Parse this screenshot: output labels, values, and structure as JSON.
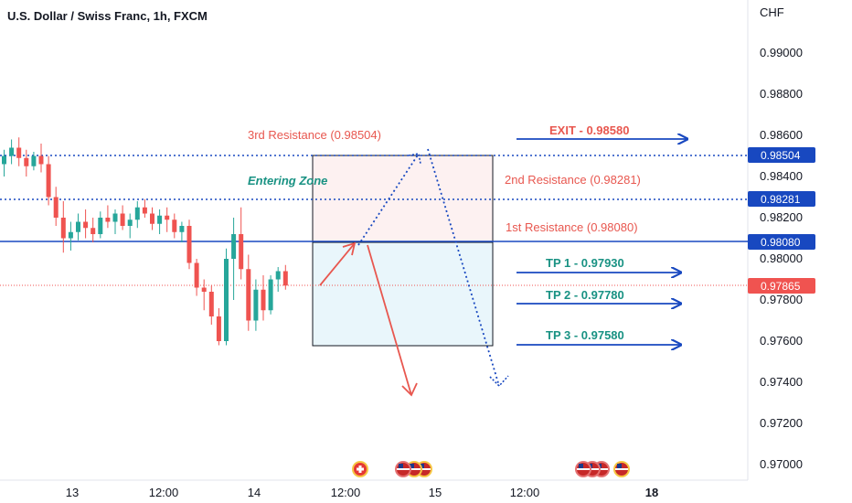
{
  "header": {
    "title": "U.S. Dollar / Swiss Franc, 1h, FXCM"
  },
  "axis": {
    "currency": "CHF",
    "y_ticks": [
      "0.99000",
      "0.98800",
      "0.98600",
      "0.98400",
      "0.98200",
      "0.98000",
      "0.97800",
      "0.97600",
      "0.97400",
      "0.97200",
      "0.97000"
    ],
    "x_ticks": [
      {
        "label": "13",
        "bold": false
      },
      {
        "label": "12:00",
        "bold": false
      },
      {
        "label": "14",
        "bold": false
      },
      {
        "label": "12:00",
        "bold": false
      },
      {
        "label": "15",
        "bold": false
      },
      {
        "label": "12:00",
        "bold": false
      },
      {
        "label": "18",
        "bold": true
      }
    ]
  },
  "price_tags": {
    "r3": "0.98504",
    "r2": "0.98281",
    "r1": "0.98080",
    "last": "0.97865"
  },
  "annotations": {
    "third_resistance": "3rd Resistance (0.98504)",
    "second_resistance": "2nd Resistance (0.98281)",
    "first_resistance": "1st Resistance (0.98080)",
    "entering_zone": "Entering Zone",
    "exit": "EXIT - 0.98580",
    "tp1": "TP 1 - 0.97930",
    "tp2": "TP 2 - 0.97780",
    "tp3": "TP 3 - 0.97580"
  },
  "colors": {
    "up": "#26a69a",
    "down": "#ef5350",
    "blue": "#1848c0",
    "blue_tag": "#1848c0",
    "red_tag": "#f05350",
    "text_red": "#e8574f",
    "text_teal": "#199283",
    "axis_text": "#131722"
  },
  "chart_data": {
    "type": "candlestick",
    "ylim": [
      0.969,
      0.992
    ],
    "candles": [
      [
        0.9846,
        0.9853,
        0.984,
        0.985
      ],
      [
        0.985,
        0.9858,
        0.9846,
        0.9854
      ],
      [
        0.9854,
        0.9859,
        0.9845,
        0.9849
      ],
      [
        0.9849,
        0.9853,
        0.984,
        0.9845
      ],
      [
        0.9845,
        0.9852,
        0.9843,
        0.985
      ],
      [
        0.985,
        0.9856,
        0.9842,
        0.9846
      ],
      [
        0.9846,
        0.985,
        0.9826,
        0.983
      ],
      [
        0.983,
        0.9835,
        0.9816,
        0.982
      ],
      [
        0.982,
        0.9828,
        0.9803,
        0.981
      ],
      [
        0.981,
        0.9818,
        0.9804,
        0.9813
      ],
      [
        0.9813,
        0.9822,
        0.9809,
        0.9818
      ],
      [
        0.9818,
        0.9824,
        0.981,
        0.9815
      ],
      [
        0.9815,
        0.982,
        0.9808,
        0.9812
      ],
      [
        0.9812,
        0.9823,
        0.981,
        0.982
      ],
      [
        0.982,
        0.9826,
        0.9815,
        0.9818
      ],
      [
        0.9818,
        0.9824,
        0.9812,
        0.9822
      ],
      [
        0.9822,
        0.9826,
        0.9814,
        0.9816
      ],
      [
        0.9816,
        0.9822,
        0.981,
        0.9819
      ],
      [
        0.9819,
        0.9828,
        0.9815,
        0.9825
      ],
      [
        0.9825,
        0.9829,
        0.982,
        0.9822
      ],
      [
        0.9822,
        0.9825,
        0.9814,
        0.9817
      ],
      [
        0.9817,
        0.9824,
        0.9812,
        0.9821
      ],
      [
        0.9821,
        0.9825,
        0.9813,
        0.9819
      ],
      [
        0.9819,
        0.9822,
        0.981,
        0.9813
      ],
      [
        0.9813,
        0.9818,
        0.9808,
        0.9816
      ],
      [
        0.9816,
        0.9819,
        0.9795,
        0.9798
      ],
      [
        0.9798,
        0.98,
        0.9782,
        0.9786
      ],
      [
        0.9786,
        0.979,
        0.9775,
        0.9784
      ],
      [
        0.9784,
        0.9787,
        0.9768,
        0.9772
      ],
      [
        0.9772,
        0.9776,
        0.9758,
        0.976
      ],
      [
        0.976,
        0.9805,
        0.9758,
        0.98
      ],
      [
        0.98,
        0.982,
        0.978,
        0.9812
      ],
      [
        0.9812,
        0.9825,
        0.979,
        0.9795
      ],
      [
        0.9795,
        0.9802,
        0.9765,
        0.977
      ],
      [
        0.977,
        0.979,
        0.9765,
        0.9785
      ],
      [
        0.9785,
        0.9792,
        0.977,
        0.9775
      ],
      [
        0.9775,
        0.9792,
        0.9773,
        0.979
      ],
      [
        0.979,
        0.9796,
        0.9784,
        0.9794
      ],
      [
        0.9794,
        0.9797,
        0.9785,
        0.9787
      ]
    ]
  }
}
